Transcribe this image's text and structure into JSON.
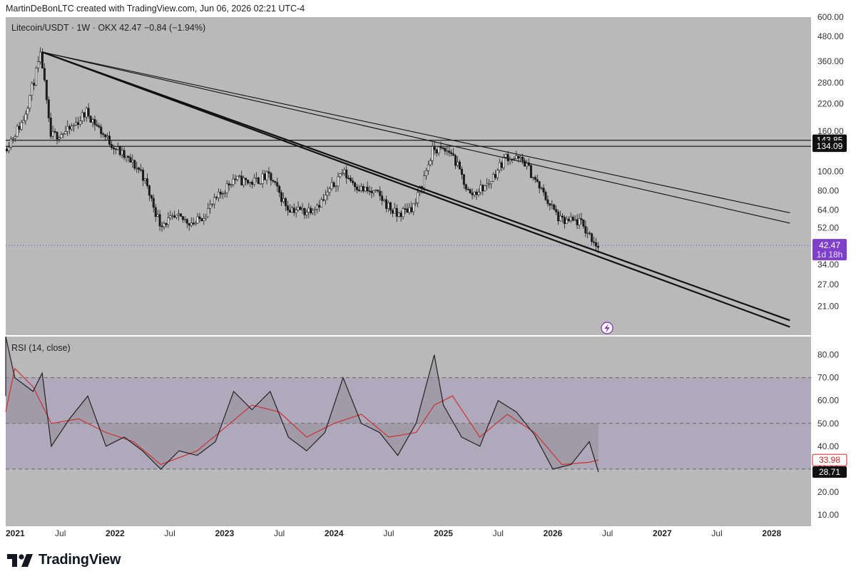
{
  "header": {
    "credit": "MartinDeBonLTC created with TradingView.com, Jun 06, 2026 02:21 UTC-4"
  },
  "legend": {
    "main": "Litecoin/USDT · 1W · OKX  42.47  −0.84 (−1.94%)",
    "rsi": "RSI (14, close)"
  },
  "brand": {
    "name": "TradingView",
    "logo_icon": "tradingview-logo-icon"
  },
  "colors": {
    "background": "#b9b9b9",
    "rsi_band": "#aea9bb",
    "rsi_line": "#222222",
    "rsi_ma": "#d32f2f",
    "last_price_tag": "#7e3fc9",
    "ma_tag": "#c62828",
    "level_tag": "#111111"
  },
  "chart_data": [
    {
      "type": "candlestick",
      "scale": "log",
      "timeframe": "1W",
      "x_ticks": [
        "2021",
        "Jul",
        "2022",
        "Jul",
        "2023",
        "Jul",
        "2024",
        "Jul",
        "2025",
        "Jul",
        "2026",
        "Jul",
        "2027",
        "Jul",
        "2028"
      ],
      "y_ticks": [
        "600.00",
        "480.00",
        "360.00",
        "280.00",
        "220.00",
        "160.00",
        "100.00",
        "80.00",
        "64.00",
        "52.00",
        "34.00",
        "27.00",
        "21.00"
      ],
      "ylim": [
        15,
        600
      ],
      "price_path": [
        [
          "2021-01",
          130
        ],
        [
          "2021-03",
          180
        ],
        [
          "2021-05",
          390
        ],
        [
          "2021-06",
          150
        ],
        [
          "2021-08",
          160
        ],
        [
          "2021-10",
          200
        ],
        [
          "2021-12",
          150
        ],
        [
          "2022-02",
          120
        ],
        [
          "2022-04",
          100
        ],
        [
          "2022-06",
          55
        ],
        [
          "2022-08",
          58
        ],
        [
          "2022-10",
          55
        ],
        [
          "2022-12",
          70
        ],
        [
          "2023-02",
          92
        ],
        [
          "2023-04",
          88
        ],
        [
          "2023-06",
          95
        ],
        [
          "2023-08",
          66
        ],
        [
          "2023-10",
          63
        ],
        [
          "2023-12",
          72
        ],
        [
          "2024-02",
          100
        ],
        [
          "2024-04",
          82
        ],
        [
          "2024-06",
          76
        ],
        [
          "2024-08",
          60
        ],
        [
          "2024-10",
          68
        ],
        [
          "2024-12",
          130
        ],
        [
          "2025-02",
          125
        ],
        [
          "2025-04",
          76
        ],
        [
          "2025-06",
          86
        ],
        [
          "2025-08",
          120
        ],
        [
          "2025-10",
          112
        ],
        [
          "2025-12",
          78
        ],
        [
          "2026-02",
          56
        ],
        [
          "2026-04",
          56
        ],
        [
          "2026-06",
          42.47
        ]
      ],
      "lines": [
        {
          "kind": "horizontal",
          "price": 143.85,
          "label": "143.85"
        },
        {
          "kind": "horizontal",
          "price": 134.09,
          "label": "134.09"
        },
        {
          "kind": "trendline",
          "from": [
            "2021-05",
            400
          ],
          "to": [
            "2028-03",
            16.5
          ]
        },
        {
          "kind": "trendline",
          "from": [
            "2021-05",
            400
          ],
          "to": [
            "2028-03",
            17.8
          ]
        },
        {
          "kind": "trendline",
          "from": [
            "2021-05",
            400
          ],
          "to": [
            "2028-03",
            55
          ]
        },
        {
          "kind": "trendline",
          "from": [
            "2021-05",
            400
          ],
          "to": [
            "2028-03",
            62
          ]
        }
      ],
      "last_price": {
        "value": "42.47",
        "countdown": "1d 18h"
      }
    },
    {
      "type": "line",
      "name": "RSI (14, close)",
      "y_ticks": [
        "80.00",
        "70.00",
        "60.00",
        "50.00",
        "40.00",
        "30.00",
        "20.00",
        "10.00"
      ],
      "ylim": [
        5,
        88
      ],
      "bands": [
        30,
        50,
        70
      ],
      "rsi_path": [
        [
          "2021-01",
          62
        ],
        [
          "2021-01",
          88
        ],
        [
          "2021-02",
          70
        ],
        [
          "2021-04",
          64
        ],
        [
          "2021-05",
          72
        ],
        [
          "2021-06",
          40
        ],
        [
          "2021-08",
          52
        ],
        [
          "2021-10",
          62
        ],
        [
          "2021-12",
          40
        ],
        [
          "2022-02",
          44
        ],
        [
          "2022-04",
          38
        ],
        [
          "2022-06",
          30
        ],
        [
          "2022-08",
          38
        ],
        [
          "2022-10",
          36
        ],
        [
          "2022-12",
          42
        ],
        [
          "2023-02",
          64
        ],
        [
          "2023-04",
          56
        ],
        [
          "2023-06",
          64
        ],
        [
          "2023-08",
          44
        ],
        [
          "2023-10",
          38
        ],
        [
          "2023-12",
          46
        ],
        [
          "2024-02",
          70
        ],
        [
          "2024-04",
          50
        ],
        [
          "2024-06",
          46
        ],
        [
          "2024-08",
          36
        ],
        [
          "2024-10",
          50
        ],
        [
          "2024-12",
          80
        ],
        [
          "2025-01",
          58
        ],
        [
          "2025-03",
          44
        ],
        [
          "2025-05",
          40
        ],
        [
          "2025-07",
          60
        ],
        [
          "2025-09",
          55
        ],
        [
          "2025-11",
          45
        ],
        [
          "2026-01",
          30
        ],
        [
          "2026-03",
          32
        ],
        [
          "2026-05",
          42
        ],
        [
          "2026-06",
          28.71
        ]
      ],
      "ma_path": [
        [
          "2021-01",
          55
        ],
        [
          "2021-02",
          74
        ],
        [
          "2021-04",
          66
        ],
        [
          "2021-06",
          50
        ],
        [
          "2021-09",
          52
        ],
        [
          "2021-12",
          46
        ],
        [
          "2022-03",
          42
        ],
        [
          "2022-06",
          32
        ],
        [
          "2022-10",
          38
        ],
        [
          "2023-01",
          48
        ],
        [
          "2023-04",
          58
        ],
        [
          "2023-07",
          55
        ],
        [
          "2023-10",
          44
        ],
        [
          "2024-01",
          50
        ],
        [
          "2024-04",
          54
        ],
        [
          "2024-07",
          44
        ],
        [
          "2024-10",
          46
        ],
        [
          "2024-12",
          58
        ],
        [
          "2025-02",
          62
        ],
        [
          "2025-05",
          44
        ],
        [
          "2025-08",
          54
        ],
        [
          "2025-11",
          46
        ],
        [
          "2026-02",
          32
        ],
        [
          "2026-05",
          33
        ],
        [
          "2026-06",
          33.98
        ]
      ],
      "value_tags": [
        {
          "value": "33.98",
          "series": "RSI-based MA"
        },
        {
          "value": "28.71",
          "series": "RSI"
        }
      ]
    }
  ]
}
